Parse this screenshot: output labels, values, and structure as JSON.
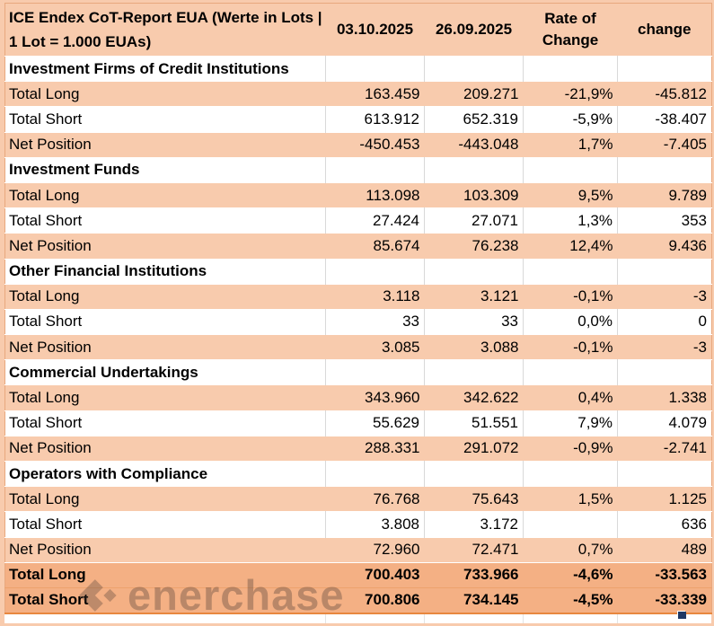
{
  "header": {
    "title": "ICE Endex CoT-Report EUA (Werte in Lots | 1 Lot = 1.000 EUAs)",
    "columns": [
      "03.10.2025",
      "26.09.2025",
      "Rate of Change",
      "change"
    ]
  },
  "sections": [
    {
      "name": "Investment Firms of Credit Institutions",
      "rows": [
        {
          "label": "Total Long",
          "v1": "163.459",
          "v2": "209.271",
          "rate": "-21,9%",
          "change": "-45.812"
        },
        {
          "label": "Total Short",
          "v1": "613.912",
          "v2": "652.319",
          "rate": "-5,9%",
          "change": "-38.407"
        },
        {
          "label": "Net Position",
          "v1": "-450.453",
          "v2": "-443.048",
          "rate": "1,7%",
          "change": "-7.405"
        }
      ]
    },
    {
      "name": "Investment Funds",
      "rows": [
        {
          "label": "Total Long",
          "v1": "113.098",
          "v2": "103.309",
          "rate": "9,5%",
          "change": "9.789"
        },
        {
          "label": "Total Short",
          "v1": "27.424",
          "v2": "27.071",
          "rate": "1,3%",
          "change": "353"
        },
        {
          "label": "Net Position",
          "v1": "85.674",
          "v2": "76.238",
          "rate": "12,4%",
          "change": "9.436"
        }
      ]
    },
    {
      "name": "Other Financial Institutions",
      "rows": [
        {
          "label": "Total Long",
          "v1": "3.118",
          "v2": "3.121",
          "rate": "-0,1%",
          "change": "-3"
        },
        {
          "label": "Total Short",
          "v1": "33",
          "v2": "33",
          "rate": "0,0%",
          "change": "0"
        },
        {
          "label": "Net Position",
          "v1": "3.085",
          "v2": "3.088",
          "rate": "-0,1%",
          "change": "-3"
        }
      ]
    },
    {
      "name": "Commercial Undertakings",
      "rows": [
        {
          "label": "Total Long",
          "v1": "343.960",
          "v2": "342.622",
          "rate": "0,4%",
          "change": "1.338"
        },
        {
          "label": "Total Short",
          "v1": "55.629",
          "v2": "51.551",
          "rate": "7,9%",
          "change": "4.079"
        },
        {
          "label": "Net Position",
          "v1": "288.331",
          "v2": "291.072",
          "rate": "-0,9%",
          "change": "-2.741"
        }
      ]
    },
    {
      "name": "Operators with Compliance",
      "rows": [
        {
          "label": "Total Long",
          "v1": "76.768",
          "v2": "75.643",
          "rate": "1,5%",
          "change": "1.125"
        },
        {
          "label": "Total Short",
          "v1": "3.808",
          "v2": "3.172",
          "rate": "",
          "change": "636"
        },
        {
          "label": "Net Position",
          "v1": "72.960",
          "v2": "72.471",
          "rate": "0,7%",
          "change": "489"
        }
      ]
    }
  ],
  "totals": [
    {
      "label": "Total Long",
      "v1": "700.403",
      "v2": "733.966",
      "rate": "-4,6%",
      "change": "-33.563"
    },
    {
      "label": "Total Short",
      "v1": "700.806",
      "v2": "734.145",
      "rate": "-4,5%",
      "change": "-33.339"
    }
  ],
  "watermark": {
    "text": "enerchase"
  },
  "colors": {
    "row_peach": "#f8cbad",
    "total_orange": "#f4b084",
    "grid_gray": "#d9d9d9",
    "table_bottom_border": "#e8873f",
    "fill_handle": "#1f3864"
  }
}
